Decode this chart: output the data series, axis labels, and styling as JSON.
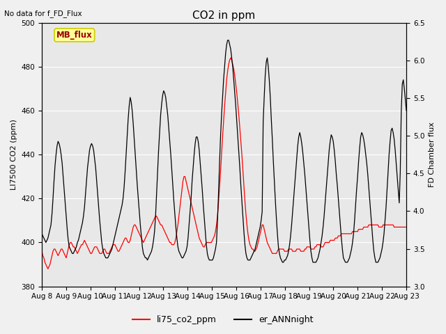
{
  "title": "CO2 in ppm",
  "top_left_text": "No data for f_FD_Flux",
  "ylabel_left": "LI7500 CO2 (ppm)",
  "ylabel_right": "FD Chamber flux",
  "ylim_left": [
    380,
    500
  ],
  "ylim_right": [
    3.0,
    6.5
  ],
  "yticks_left": [
    380,
    400,
    420,
    440,
    460,
    480,
    500
  ],
  "yticks_right": [
    3.0,
    3.5,
    4.0,
    4.5,
    5.0,
    5.5,
    6.0,
    6.5
  ],
  "xticklabels": [
    "Aug 8",
    "Aug 9",
    "Aug 10",
    "Aug 11",
    "Aug 12",
    "Aug 13",
    "Aug 14",
    "Aug 15",
    "Aug 16",
    "Aug 17",
    "Aug 18",
    "Aug 19",
    "Aug 20",
    "Aug 21",
    "Aug 22",
    "Aug 23"
  ],
  "fig_bg": "#f0f0f0",
  "plot_bg": "#e8e8e8",
  "grid_color": "#ffffff",
  "mb_flux_box_color": "#ffff99",
  "mb_flux_text_color": "#990000",
  "mb_flux_edge_color": "#cccc00",
  "title_fontsize": 11,
  "axis_label_fontsize": 8,
  "tick_fontsize": 7.5,
  "legend_fontsize": 9,
  "red_series_ppm": [
    396,
    394,
    393,
    391,
    390,
    389,
    388,
    389,
    390,
    392,
    394,
    396,
    397,
    397,
    396,
    395,
    394,
    395,
    396,
    397,
    397,
    396,
    395,
    394,
    393,
    395,
    397,
    399,
    400,
    400,
    399,
    398,
    398,
    397,
    396,
    395,
    396,
    397,
    398,
    399,
    399,
    400,
    401,
    400,
    399,
    398,
    397,
    396,
    395,
    395,
    396,
    397,
    398,
    398,
    398,
    397,
    396,
    395,
    395,
    395,
    396,
    397,
    397,
    396,
    395,
    395,
    395,
    396,
    397,
    398,
    399,
    399,
    399,
    398,
    397,
    396,
    396,
    397,
    398,
    399,
    400,
    401,
    402,
    402,
    401,
    400,
    400,
    401,
    403,
    405,
    407,
    408,
    408,
    407,
    406,
    405,
    404,
    403,
    402,
    401,
    400,
    401,
    402,
    403,
    404,
    405,
    406,
    407,
    408,
    409,
    410,
    411,
    412,
    412,
    411,
    410,
    409,
    408,
    408,
    407,
    406,
    405,
    404,
    403,
    402,
    401,
    400,
    400,
    399,
    399,
    399,
    400,
    402,
    405,
    408,
    412,
    416,
    420,
    424,
    428,
    430,
    430,
    428,
    426,
    424,
    422,
    420,
    418,
    416,
    414,
    412,
    410,
    408,
    406,
    404,
    402,
    401,
    400,
    399,
    398,
    398,
    399,
    400,
    400,
    400,
    400,
    400,
    400,
    401,
    402,
    403,
    405,
    408,
    412,
    418,
    425,
    432,
    440,
    448,
    455,
    462,
    468,
    474,
    478,
    481,
    483,
    484,
    483,
    481,
    479,
    476,
    472,
    468,
    463,
    458,
    452,
    446,
    440,
    433,
    426,
    419,
    413,
    408,
    404,
    401,
    399,
    398,
    397,
    397,
    396,
    396,
    397,
    398,
    400,
    402,
    404,
    406,
    408,
    408,
    406,
    404,
    402,
    400,
    399,
    398,
    397,
    396,
    395,
    395,
    395,
    395,
    395,
    396,
    397,
    397,
    397,
    397,
    397,
    397,
    396,
    396,
    396,
    396,
    397,
    397,
    397,
    397,
    396,
    396,
    396,
    396,
    397,
    397,
    397,
    397,
    396,
    396,
    396,
    396,
    397,
    397,
    398,
    398,
    398,
    398,
    397,
    397,
    397,
    397,
    398,
    398,
    399,
    399,
    399,
    399,
    398,
    398,
    398,
    399,
    400,
    400,
    400,
    400,
    400,
    401,
    401,
    401,
    401,
    401,
    402,
    402,
    402,
    403,
    403,
    403,
    404,
    404,
    404,
    404,
    404,
    404,
    404,
    404,
    404,
    404,
    404,
    405,
    405,
    405,
    405,
    405,
    405,
    406,
    406,
    406,
    406,
    406,
    407,
    407,
    407,
    407,
    407,
    408,
    408,
    408,
    408,
    408,
    408,
    408,
    408,
    408,
    408,
    407,
    407,
    407,
    407,
    408,
    408,
    408,
    408,
    408,
    408,
    408,
    408,
    408,
    408,
    408,
    407,
    407,
    407,
    407,
    407,
    407,
    407,
    407,
    407,
    407,
    407,
    407,
    407
  ],
  "black_series_ppm": [
    404,
    403,
    402,
    401,
    400,
    401,
    402,
    404,
    406,
    408,
    413,
    420,
    428,
    435,
    440,
    444,
    446,
    445,
    443,
    440,
    436,
    430,
    424,
    418,
    412,
    406,
    401,
    398,
    397,
    396,
    395,
    395,
    396,
    397,
    398,
    400,
    401,
    403,
    405,
    407,
    409,
    412,
    416,
    422,
    428,
    434,
    438,
    442,
    444,
    445,
    444,
    442,
    438,
    434,
    428,
    422,
    416,
    410,
    405,
    400,
    397,
    395,
    394,
    393,
    393,
    393,
    394,
    395,
    396,
    397,
    399,
    401,
    403,
    405,
    407,
    409,
    411,
    413,
    415,
    417,
    420,
    425,
    432,
    440,
    448,
    456,
    462,
    466,
    464,
    460,
    454,
    447,
    440,
    433,
    426,
    420,
    414,
    408,
    403,
    398,
    395,
    394,
    393,
    393,
    392,
    393,
    394,
    395,
    396,
    398,
    401,
    405,
    412,
    422,
    432,
    442,
    450,
    458,
    463,
    467,
    469,
    468,
    466,
    462,
    458,
    452,
    446,
    440,
    433,
    426,
    419,
    413,
    407,
    402,
    398,
    396,
    395,
    394,
    393,
    393,
    394,
    395,
    396,
    398,
    402,
    408,
    414,
    420,
    428,
    434,
    440,
    445,
    448,
    448,
    446,
    442,
    436,
    430,
    424,
    417,
    411,
    405,
    399,
    395,
    393,
    392,
    392,
    392,
    392,
    393,
    395,
    397,
    400,
    410,
    422,
    436,
    448,
    458,
    466,
    474,
    480,
    486,
    490,
    492,
    492,
    490,
    488,
    484,
    480,
    474,
    468,
    462,
    455,
    448,
    441,
    434,
    426,
    419,
    412,
    405,
    399,
    395,
    393,
    392,
    392,
    392,
    393,
    394,
    395,
    396,
    397,
    399,
    401,
    403,
    405,
    407,
    410,
    414,
    455,
    466,
    476,
    482,
    484,
    480,
    474,
    466,
    456,
    447,
    437,
    428,
    419,
    411,
    404,
    398,
    395,
    393,
    392,
    391,
    391,
    392,
    392,
    393,
    394,
    396,
    399,
    403,
    408,
    414,
    420,
    426,
    432,
    438,
    444,
    448,
    450,
    448,
    445,
    441,
    436,
    431,
    425,
    419,
    413,
    407,
    401,
    396,
    393,
    391,
    391,
    391,
    391,
    392,
    393,
    395,
    397,
    400,
    403,
    407,
    412,
    418,
    424,
    430,
    436,
    442,
    446,
    449,
    448,
    446,
    442,
    437,
    431,
    426,
    420,
    414,
    408,
    402,
    397,
    393,
    392,
    391,
    391,
    391,
    392,
    393,
    395,
    397,
    400,
    404,
    410,
    417,
    424,
    430,
    437,
    443,
    448,
    450,
    449,
    447,
    444,
    440,
    436,
    431,
    425,
    419,
    413,
    407,
    401,
    396,
    393,
    391,
    391,
    391,
    392,
    393,
    395,
    397,
    400,
    404,
    410,
    416,
    424,
    432,
    440,
    446,
    451,
    452,
    450,
    447,
    442,
    436,
    430,
    424,
    418,
    432,
    460,
    472,
    474,
    470,
    465,
    460
  ]
}
